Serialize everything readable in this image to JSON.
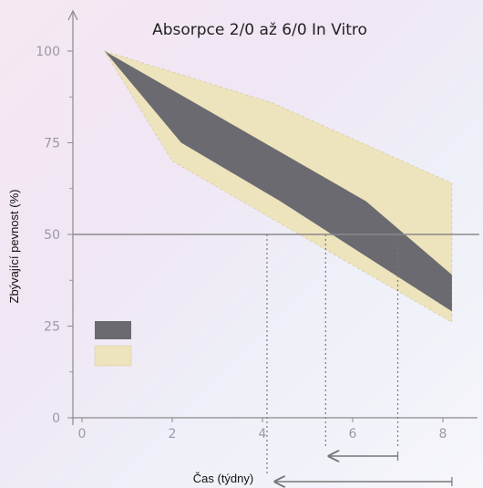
{
  "chart_data": {
    "type": "area",
    "title": "Absorpce 2/0 až 6/0 In Vitro",
    "xlabel": "Čas (týdny)",
    "ylabel": "Zbývající pevnost (%)",
    "xlim": [
      0,
      8.2
    ],
    "ylim": [
      0,
      100
    ],
    "x_ticks": [
      "0",
      "2",
      "4",
      "6",
      "8"
    ],
    "y_ticks": [
      "0",
      "25",
      "50",
      "75",
      "100"
    ],
    "grid": false,
    "reference_line_y": 50,
    "legend": {
      "position": "left-middle",
      "entries": [
        "",
        ""
      ]
    },
    "colors": {
      "outer_band": "#ede3bc",
      "inner_band": "#6a6a70",
      "axis": "#8a8a8a",
      "reference_line": "#8a8a8a",
      "markers": "#777777",
      "arrows": "#777777"
    },
    "series": [
      {
        "role": "outer-upper",
        "x": [
          0.5,
          4.2,
          8.2
        ],
        "y": [
          100,
          86,
          64
        ]
      },
      {
        "role": "outer-lower",
        "x": [
          0.5,
          2.0,
          8.2
        ],
        "y": [
          100,
          70,
          26
        ]
      },
      {
        "role": "inner-upper",
        "x": [
          0.5,
          6.3,
          8.2
        ],
        "y": [
          100,
          59,
          39
        ]
      },
      {
        "role": "inner-lower",
        "x": [
          0.5,
          2.2,
          4.4,
          8.2
        ],
        "y": [
          100,
          75,
          59,
          29
        ]
      }
    ],
    "markers_x": [
      4.1,
      5.4,
      7.0
    ],
    "arrow_ranges": [
      {
        "from": 5.4,
        "to": 7.0
      },
      {
        "from": 4.2,
        "to": 8.2
      }
    ]
  }
}
